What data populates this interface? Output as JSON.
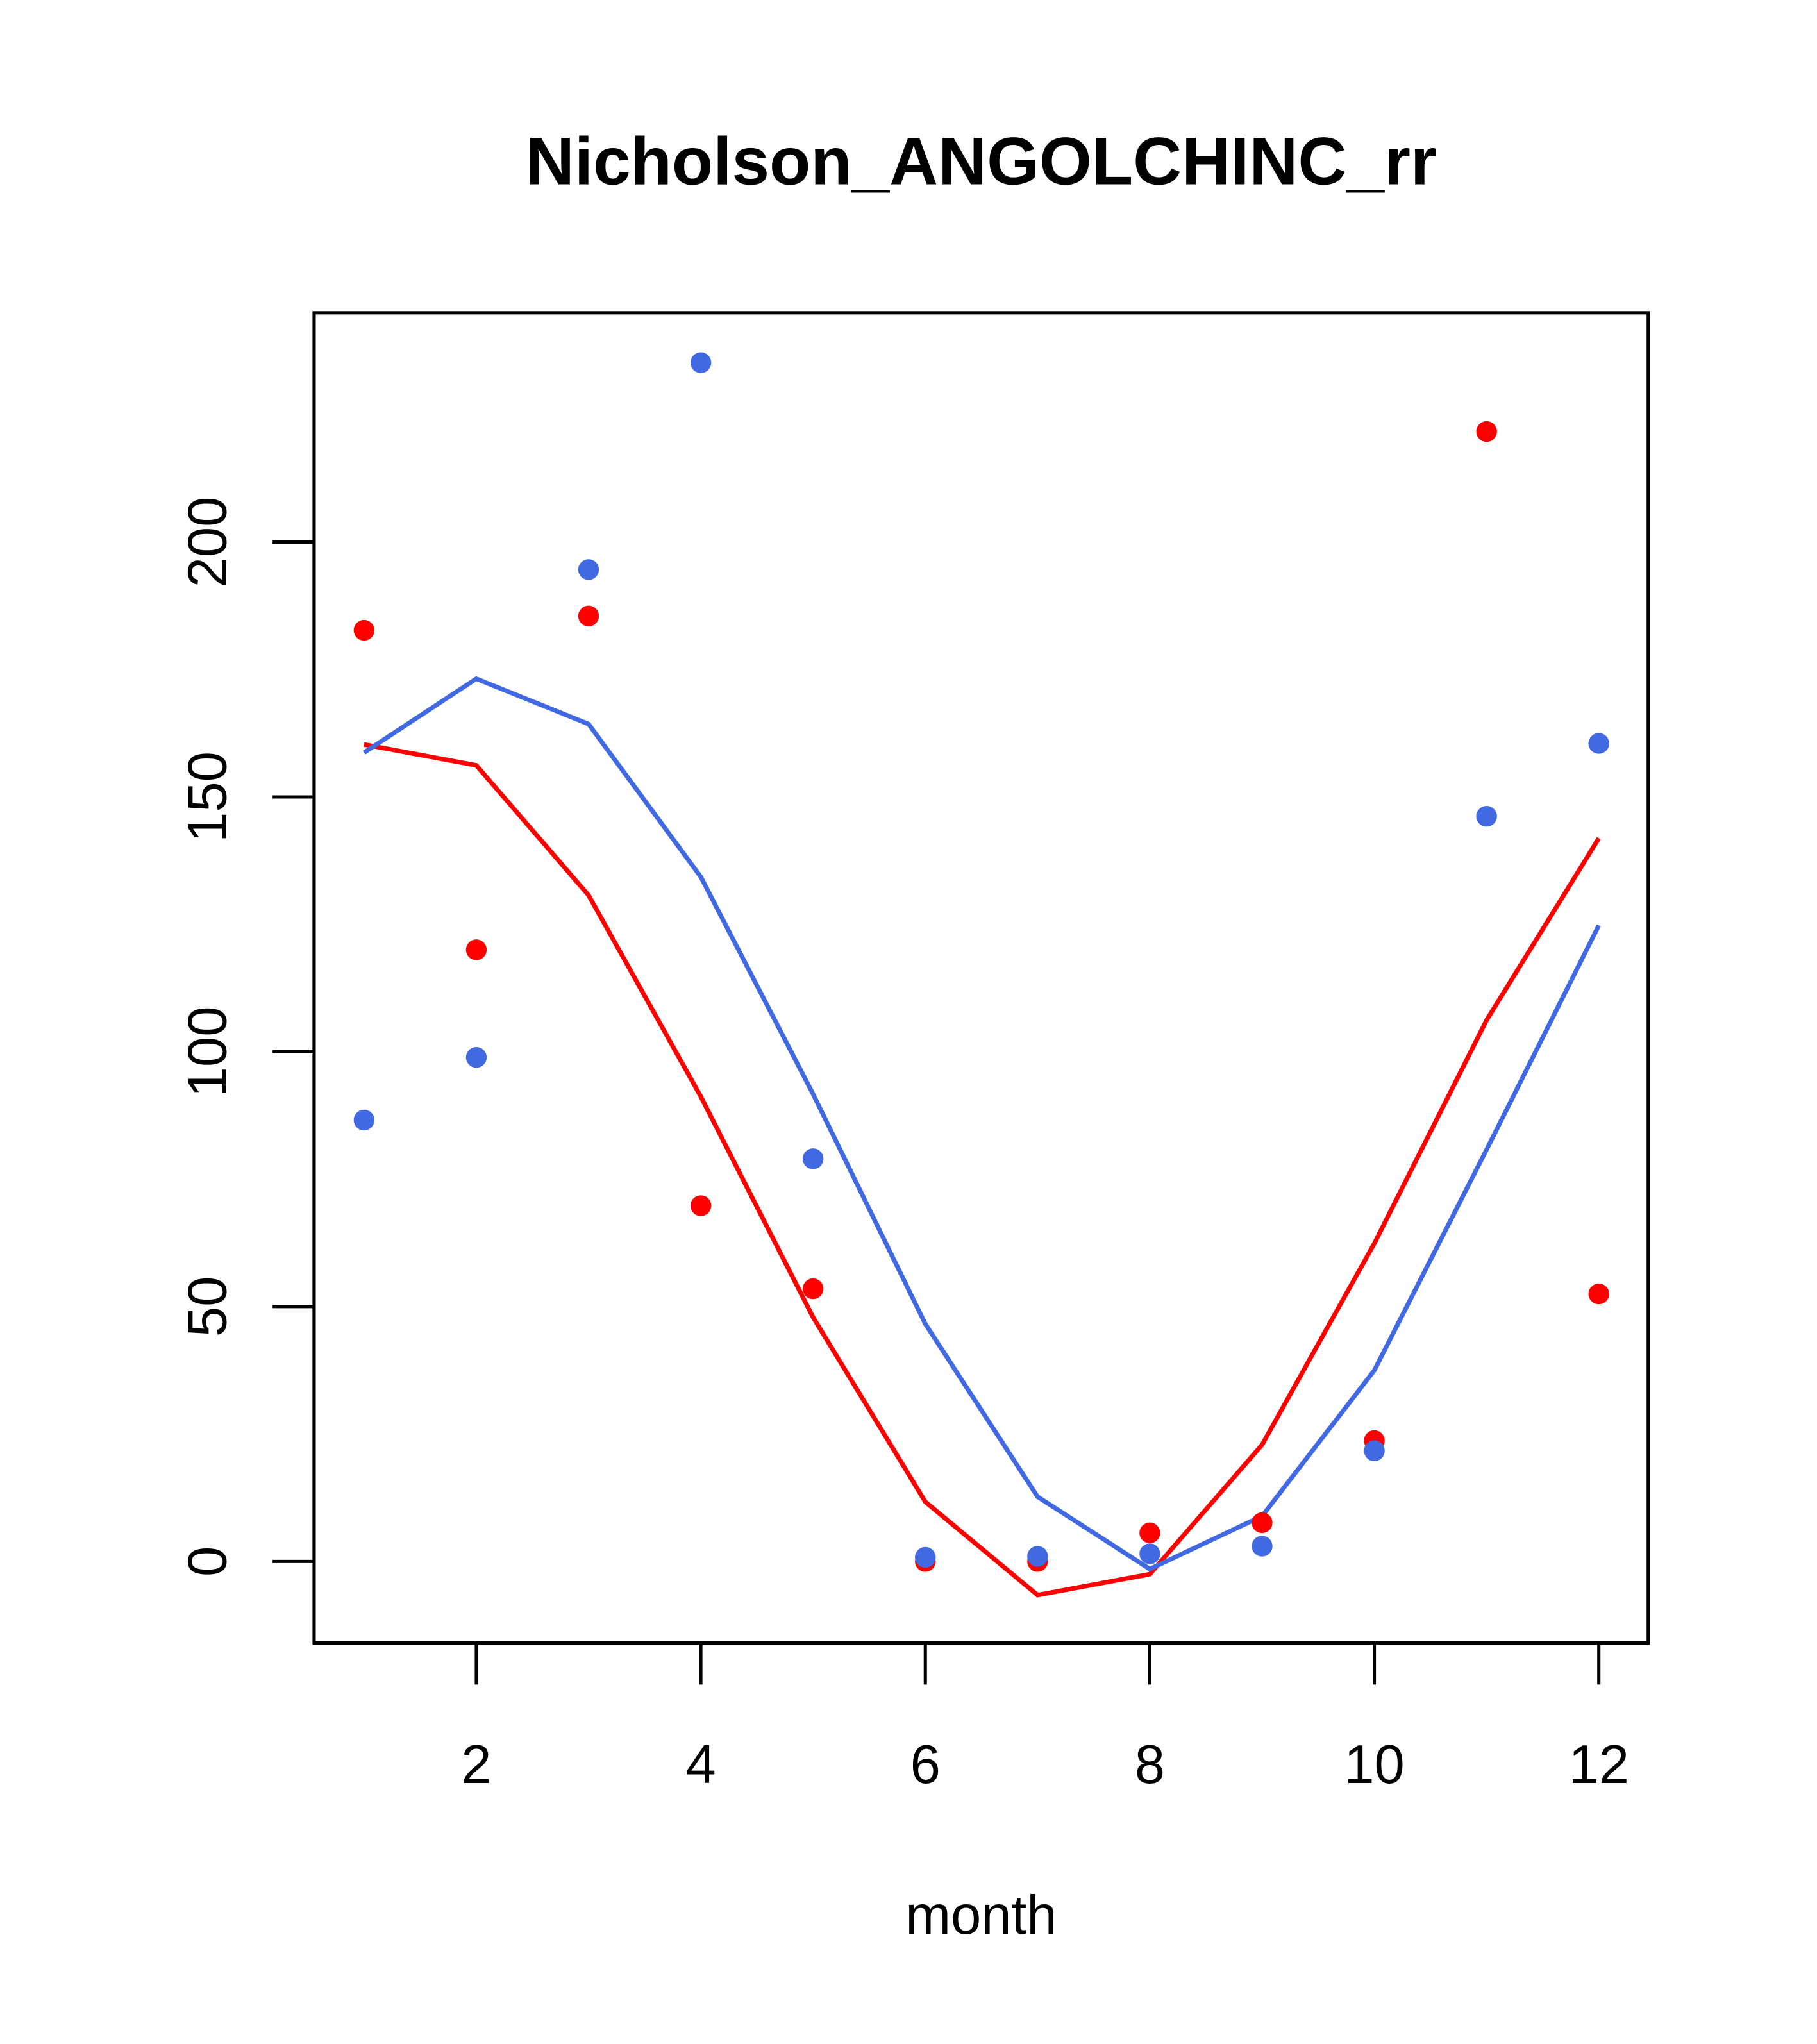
{
  "chart_data": {
    "type": "scatter",
    "title": "Nicholson_ANGOLCHINC_rr",
    "xlabel": "month",
    "ylabel": "",
    "xlim": [
      0.555,
      12.44
    ],
    "ylim": [
      -16,
      245
    ],
    "xticks": [
      2,
      4,
      6,
      8,
      10,
      12
    ],
    "yticks": [
      0,
      50,
      100,
      150,
      200
    ],
    "grid": false,
    "x": [
      1,
      2,
      3,
      4,
      5,
      6,
      7,
      8,
      9,
      10,
      11,
      12
    ],
    "series": [
      {
        "name": "red points",
        "kind": "points",
        "color": "#ff0000",
        "values": [
          182.7,
          120,
          185.5,
          69.8,
          53.5,
          0,
          0,
          5.6,
          7.6,
          23.7,
          221.7,
          52.5
        ]
      },
      {
        "name": "blue points",
        "kind": "points",
        "color": "#4169e1",
        "values": [
          86.6,
          98.9,
          194.6,
          235.2,
          79,
          0.8,
          1,
          1.5,
          3,
          21.7,
          146.2,
          160.5
        ]
      },
      {
        "name": "red fit",
        "kind": "line",
        "color": "#ff0000",
        "values": [
          160.3,
          156.2,
          130.7,
          91.2,
          47.9,
          11.7,
          -6.6,
          -2.5,
          22.9,
          62.4,
          106.2,
          141.9
        ]
      },
      {
        "name": "blue fit",
        "kind": "line",
        "color": "#4169e1",
        "values": [
          158.7,
          173.2,
          164.3,
          134.3,
          91.7,
          46.6,
          12.7,
          -1.5,
          8.9,
          37.5,
          80.8,
          124.8
        ]
      }
    ]
  }
}
